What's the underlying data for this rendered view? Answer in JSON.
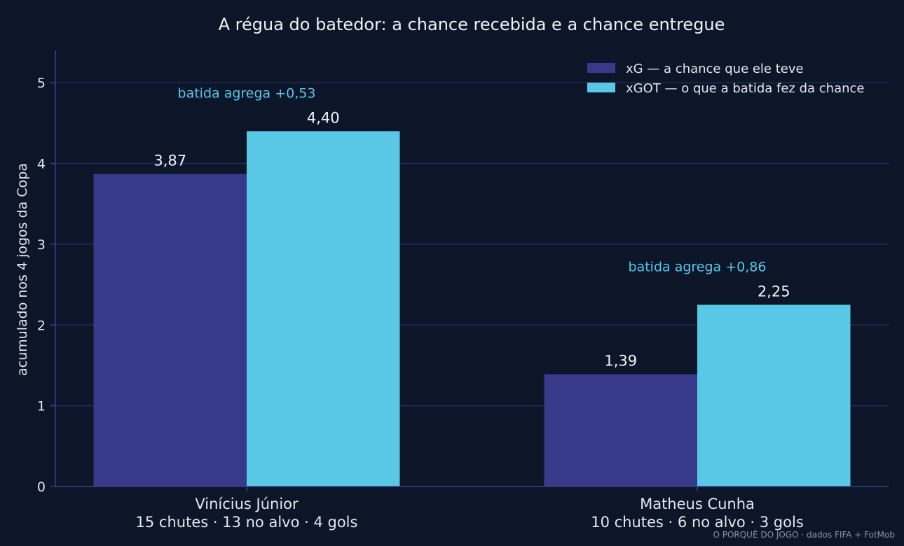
{
  "chart_data": {
    "type": "bar",
    "title": "A régua do batedor: a chance recebida e a chance entregue",
    "ylabel": "acumulado nos 4 jogos da Copa",
    "ylim": [
      0,
      5.4
    ],
    "yticks": [
      "0",
      "1",
      "2",
      "3",
      "4",
      "5"
    ],
    "grid": true,
    "legend_position": "top-right",
    "categories": [
      {
        "name": "Vinícius Júnior",
        "sub": "15 chutes · 13 no alvo · 4 gols",
        "annotation": "batida agrega +0,53"
      },
      {
        "name": "Matheus Cunha",
        "sub": "10 chutes · 6 no alvo · 3 gols",
        "annotation": "batida agrega +0,86"
      }
    ],
    "series": [
      {
        "name": "xG — a chance que ele teve",
        "color": "#373a8a",
        "values": [
          3.87,
          1.39
        ],
        "labels": [
          "3,87",
          "1,39"
        ]
      },
      {
        "name": "xGOT — o que a batida fez da chance",
        "color": "#59c8e6",
        "values": [
          4.4,
          2.25
        ],
        "labels": [
          "4,40",
          "2,25"
        ]
      }
    ]
  },
  "source": "O PORQUÊ DO JOGO · dados FIFA + FotMob",
  "colors": {
    "background": "#0c1628",
    "grid": "#1c2b5a",
    "axis": "#3a3f8e",
    "annotation": "#56c8ec"
  }
}
